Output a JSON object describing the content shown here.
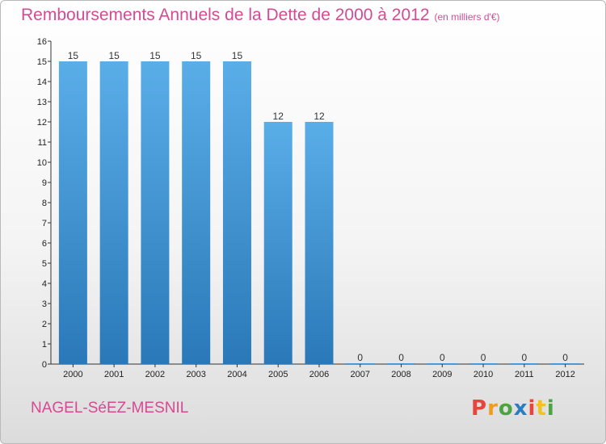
{
  "header": {
    "title": "Remboursements Annuels de la Dette de 2000 à 2012",
    "subtitle": "(en milliers d'€)"
  },
  "footer": {
    "commune": "NAGEL-SéEZ-MESNIL",
    "logo_letters": [
      "P",
      "r",
      "o",
      "x",
      "i",
      "t",
      "i"
    ],
    "logo_colors": [
      "#e8443b",
      "#f29a1e",
      "#4aa441",
      "#2a7cc3",
      "#e8443b",
      "#f2c21e",
      "#4aa441"
    ]
  },
  "chart_data": {
    "type": "bar",
    "categories": [
      "2000",
      "2001",
      "2002",
      "2003",
      "2004",
      "2005",
      "2006",
      "2007",
      "2008",
      "2009",
      "2010",
      "2011",
      "2012"
    ],
    "values": [
      15,
      15,
      15,
      15,
      15,
      12,
      12,
      0,
      0,
      0,
      0,
      0,
      0
    ],
    "title": "Remboursements Annuels de la Dette de 2000 à 2012",
    "xlabel": "",
    "ylabel": "",
    "ylim": [
      0,
      16
    ],
    "yticks": [
      "0",
      "1",
      "2",
      "3",
      "4",
      "5",
      "6",
      "7",
      "8",
      "9",
      "10",
      "11",
      "12",
      "13",
      "14",
      "15",
      "16"
    ],
    "grid": false,
    "legend": "none",
    "bar_color_top": "#5aaee8",
    "bar_color_bottom": "#2a78b8"
  }
}
